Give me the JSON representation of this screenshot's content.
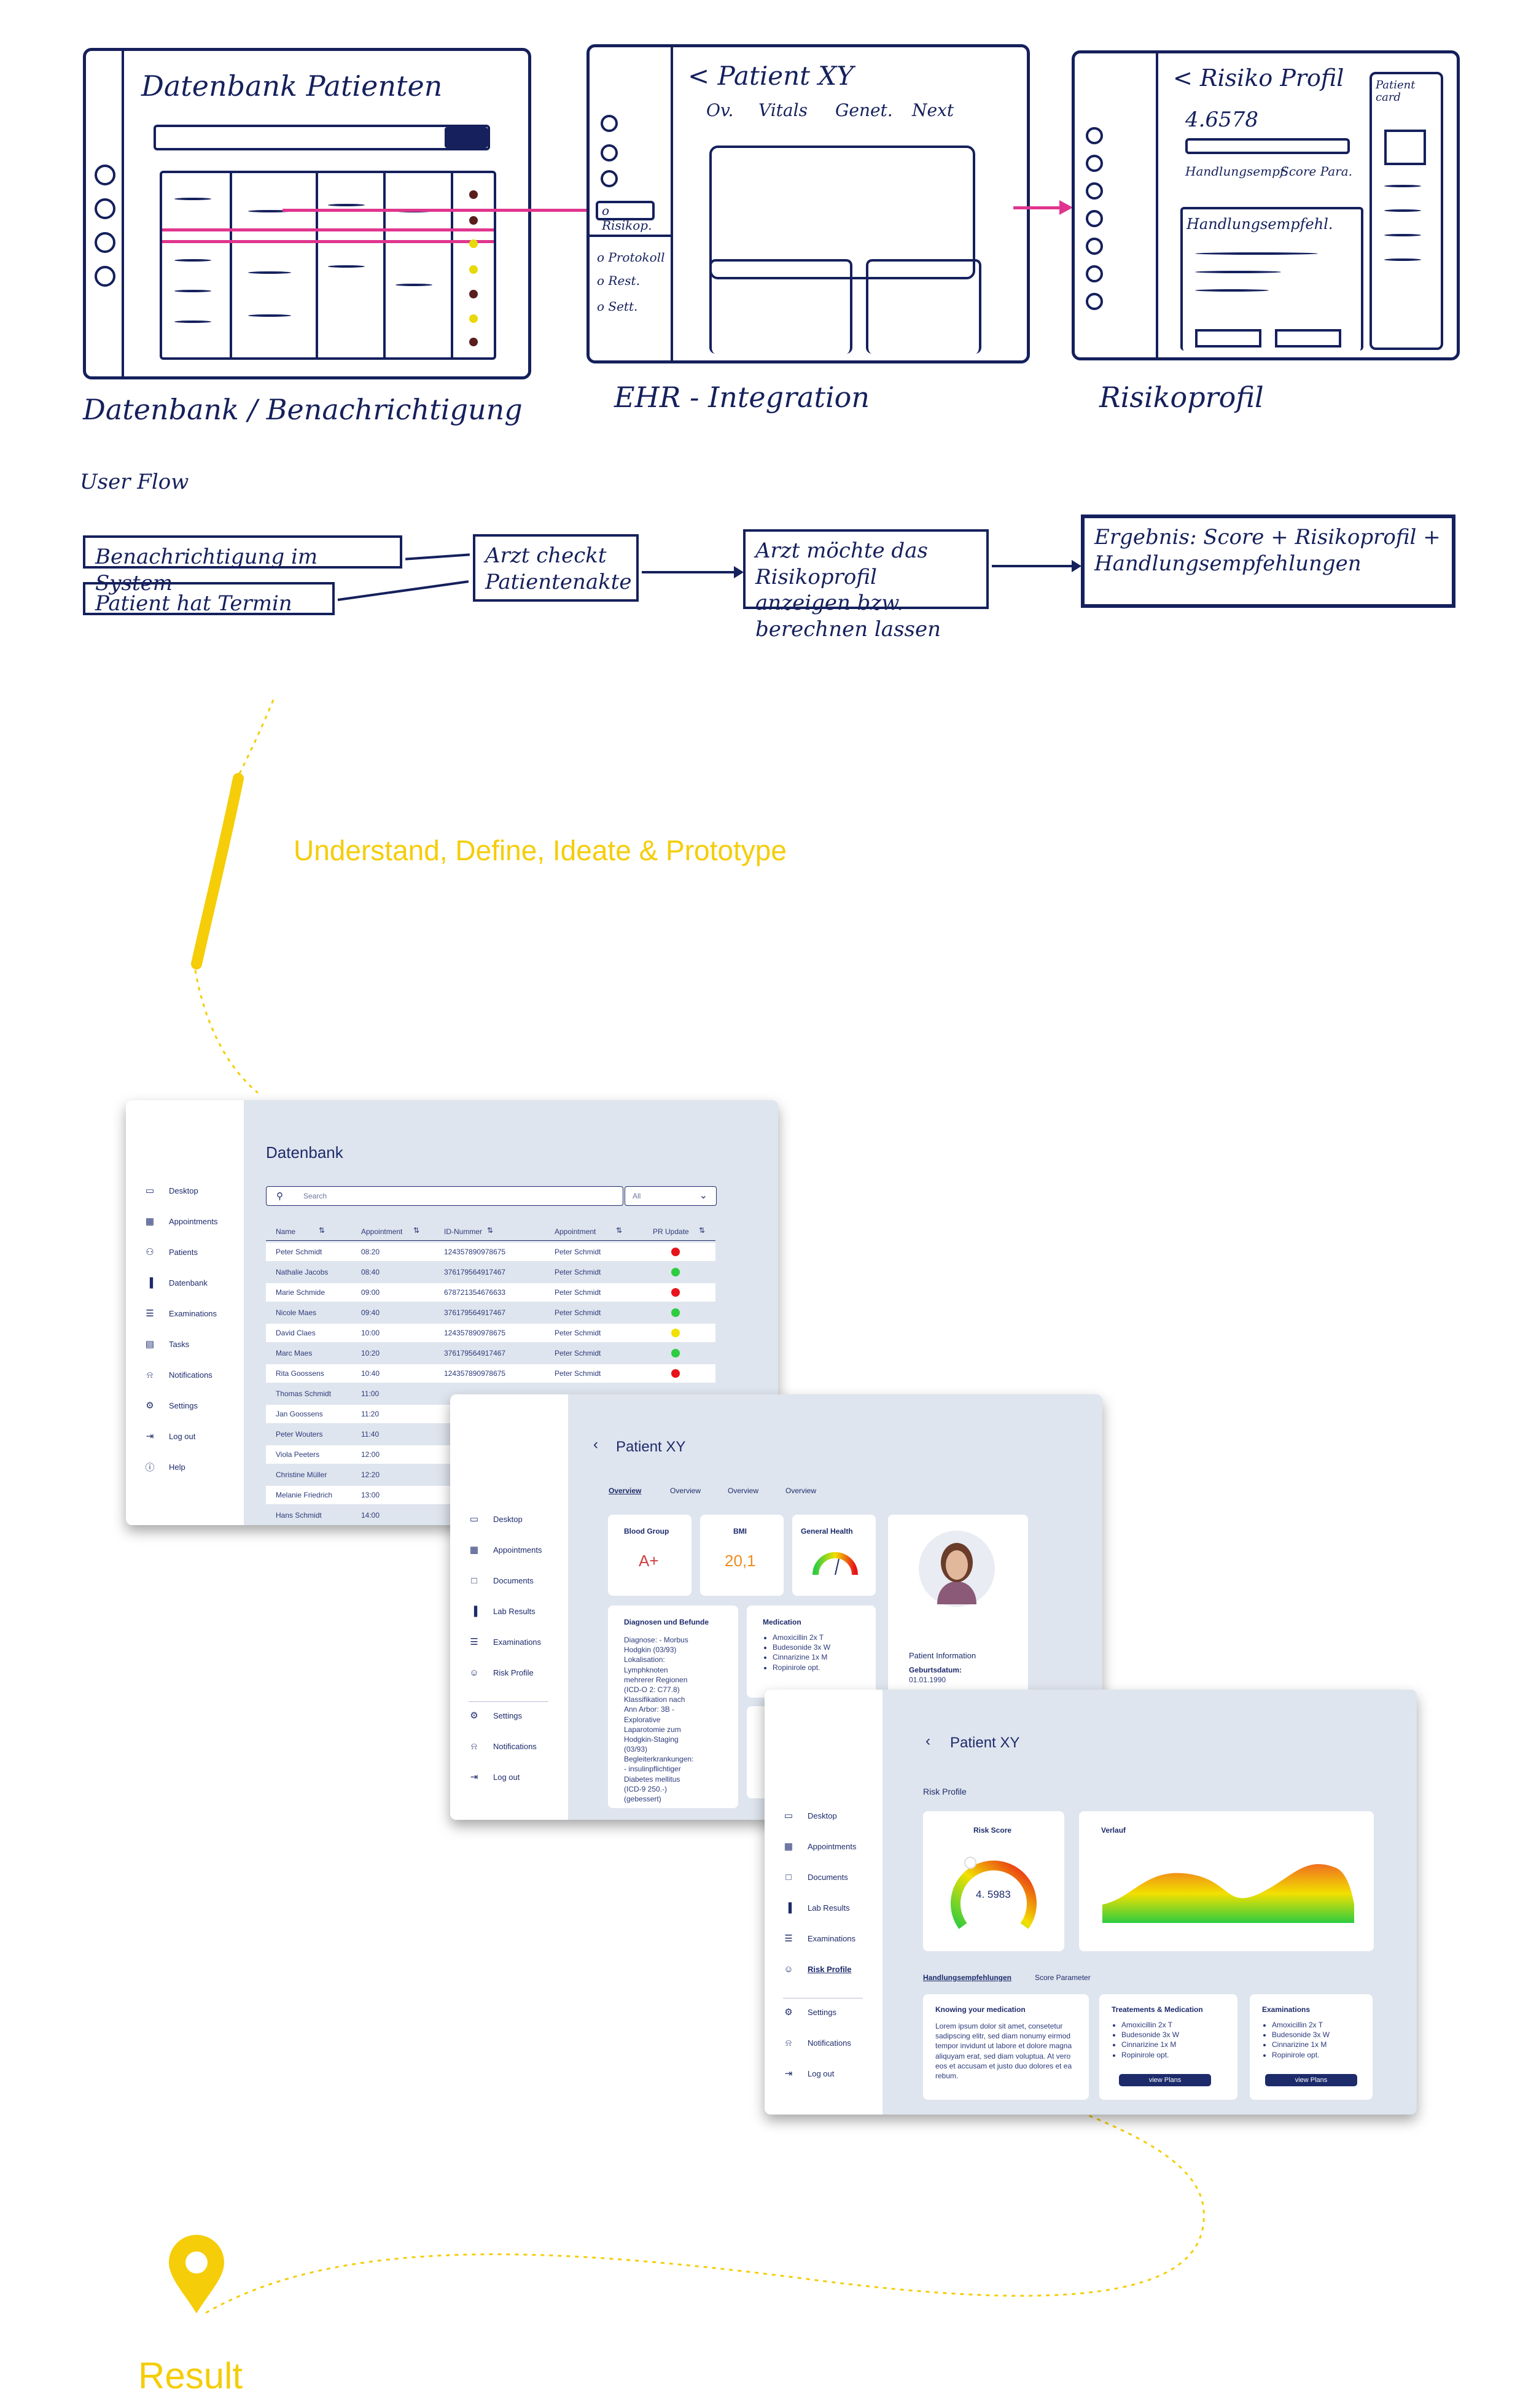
{
  "sketch": {
    "frame1": {
      "title": "Datenbank Patienten",
      "caption": "Datenbank / Benachrichtigung"
    },
    "frame2": {
      "title": "< Patient XY",
      "tabs": [
        "Ov.",
        "Vitals",
        "Genet.",
        "Next"
      ],
      "side_items": [
        "o Risikop.",
        "o Protokoll",
        "o Rest.",
        "o Sett."
      ],
      "caption": "EHR - Integration"
    },
    "frame3": {
      "title": "< Risiko Profil",
      "score": "4.6578",
      "tabs": [
        "Handlungsempf.",
        "Score Para."
      ],
      "patient_card": "Patient card",
      "box_title": "Handlungsempfehl.",
      "caption": "Risikoprofil"
    },
    "user_flow": {
      "label": "User Flow",
      "box1": "Benachrichtigung im System",
      "box2": "Patient hat Termin",
      "box3": "Arzt checkt Patientenakte",
      "box4": "Arzt möchte das Risikoprofil anzeigen bzw. berechnen lassen",
      "box5": "Ergebnis: Score + Risikoprofil + Handlungsempfehlungen"
    }
  },
  "process_label": "Understand, Define, Ideate & Prototype",
  "result_label": "Result",
  "colors": {
    "accent": "#f5cd08",
    "navy": "#1d2b6b",
    "panel": "#dfe5ee",
    "green": "#2ecc40",
    "red": "#e8141b",
    "yellow": "#f2e000"
  },
  "datenbank": {
    "title": "Datenbank",
    "search_placeholder": "Search",
    "filter": "All",
    "nav": [
      {
        "label": "Desktop",
        "icon": "desktop-icon"
      },
      {
        "label": "Appointments",
        "icon": "calendar-icon"
      },
      {
        "label": "Patients",
        "icon": "people-icon"
      },
      {
        "label": "Datenbank",
        "icon": "bar-chart-icon"
      },
      {
        "label": "Examinations",
        "icon": "list-icon"
      },
      {
        "label": "Tasks",
        "icon": "clipboard-icon"
      },
      {
        "label": "Notifications",
        "icon": "bell-icon"
      },
      {
        "label": "Settings",
        "icon": "gear-icon"
      },
      {
        "label": "Log out",
        "icon": "logout-icon"
      },
      {
        "label": "Help",
        "icon": "help-icon"
      }
    ],
    "columns": [
      "Name",
      "Appointment",
      "ID-Nummer",
      "Appointment",
      "PR Update"
    ],
    "rows": [
      {
        "name": "Peter Schmidt",
        "time": "08:20",
        "id": "124357890978675",
        "doc": "Peter Schmidt",
        "status": "red"
      },
      {
        "name": "Nathalie Jacobs",
        "time": "08:40",
        "id": "376179564917467",
        "doc": "Peter Schmidt",
        "status": "green"
      },
      {
        "name": "Marie Schmide",
        "time": "09:00",
        "id": "678721354676633",
        "doc": "Peter Schmidt",
        "status": "red"
      },
      {
        "name": "Nicole Maes",
        "time": "09:40",
        "id": "376179564917467",
        "doc": "Peter Schmidt",
        "status": "green"
      },
      {
        "name": "David Claes",
        "time": "10:00",
        "id": "124357890978675",
        "doc": "Peter Schmidt",
        "status": "yellow"
      },
      {
        "name": "Marc Maes",
        "time": "10:20",
        "id": "376179564917467",
        "doc": "Peter Schmidt",
        "status": "green"
      },
      {
        "name": "Rita Goossens",
        "time": "10:40",
        "id": "124357890978675",
        "doc": "Peter Schmidt",
        "status": "red"
      },
      {
        "name": "Thomas Schmidt",
        "time": "11:00",
        "id": "",
        "doc": "",
        "status": ""
      },
      {
        "name": "Jan Goossens",
        "time": "11:20",
        "id": "",
        "doc": "",
        "status": ""
      },
      {
        "name": "Peter Wouters",
        "time": "11:40",
        "id": "",
        "doc": "",
        "status": ""
      },
      {
        "name": "Viola Peeters",
        "time": "12:00",
        "id": "",
        "doc": "",
        "status": ""
      },
      {
        "name": "Christine Müller",
        "time": "12:20",
        "id": "",
        "doc": "",
        "status": ""
      },
      {
        "name": "Melanie Friedrich",
        "time": "13:00",
        "id": "",
        "doc": "",
        "status": ""
      },
      {
        "name": "Hans Schmidt",
        "time": "14:00",
        "id": "",
        "doc": "",
        "status": ""
      }
    ]
  },
  "patient": {
    "title": "Patient XY",
    "tabs": [
      "Overview",
      "Overview",
      "Overview",
      "Overview"
    ],
    "nav": [
      {
        "label": "Desktop",
        "icon": "desktop-icon"
      },
      {
        "label": "Appointments",
        "icon": "calendar-icon"
      },
      {
        "label": "Documents",
        "icon": "document-icon"
      },
      {
        "label": "Lab Results",
        "icon": "bar-chart-icon"
      },
      {
        "label": "Examinations",
        "icon": "list-icon"
      },
      {
        "label": "Risk Profile",
        "icon": "person-icon"
      },
      {
        "label": "Settings",
        "icon": "gear-icon"
      },
      {
        "label": "Notifications",
        "icon": "bell-icon"
      },
      {
        "label": "Log out",
        "icon": "logout-icon"
      }
    ],
    "blood_group_label": "Blood Group",
    "blood_group": "A+",
    "bmi_label": "BMI",
    "bmi": "20,1",
    "health_label": "General Health",
    "diagnosen_label": "Diagnosen und Befunde",
    "diagnosen_text": "Diagnose: - Morbus Hodgkin (03/93) Lokalisation: Lymphknoten mehrerer Regionen (ICD-O 2: C77.8) Klassifikation nach Ann Arbor: 3B - Explorative Laparotomie zum Hodgkin-Staging (03/93) Begleiterkrankungen: - insulinpflichtiger Diabetes mellitus (ICD-9 250.-) (gebessert)",
    "medication_label": "Medication",
    "medication": [
      "Amoxicillin 2x T",
      "Budesonide 3x W",
      "Cinnarizine 1x M",
      "Ropinirole opt."
    ],
    "info_label": "Patient Information",
    "birth_label": "Geburtsdatum:",
    "birth_value": "01.01.1990"
  },
  "risk": {
    "title": "Patient XY",
    "section": "Risk Profile",
    "nav": [
      {
        "label": "Desktop",
        "icon": "desktop-icon"
      },
      {
        "label": "Appointments",
        "icon": "calendar-icon"
      },
      {
        "label": "Documents",
        "icon": "document-icon"
      },
      {
        "label": "Lab Results",
        "icon": "bar-chart-icon"
      },
      {
        "label": "Examinations",
        "icon": "list-icon"
      },
      {
        "label": "Risk Profile",
        "icon": "person-icon"
      },
      {
        "label": "Settings",
        "icon": "gear-icon"
      },
      {
        "label": "Notifications",
        "icon": "bell-icon"
      },
      {
        "label": "Log out",
        "icon": "logout-icon"
      }
    ],
    "score_label": "Risk Score",
    "score": "4. 5983",
    "verlauf_label": "Verlauf",
    "tab_active": "Handlungsempfehlungen",
    "tab_other": "Score Parameter",
    "card1_title": "Knowing your medication",
    "card1_text": "Lorem ipsum dolor sit amet, consetetur sadipscing elitr, sed diam nonumy eirmod tempor invidunt ut labore et dolore magna aliquyam erat, sed diam voluptua. At vero eos et accusam et justo duo dolores et ea rebum.",
    "card2_title": "Treatements & Medication",
    "card3_title": "Examinations",
    "list": [
      "Amoxicillin 2x T",
      "Budesonide 3x W",
      "Cinnarizine 1x M",
      "Ropinirole opt."
    ],
    "view_plans": "view Plans"
  }
}
